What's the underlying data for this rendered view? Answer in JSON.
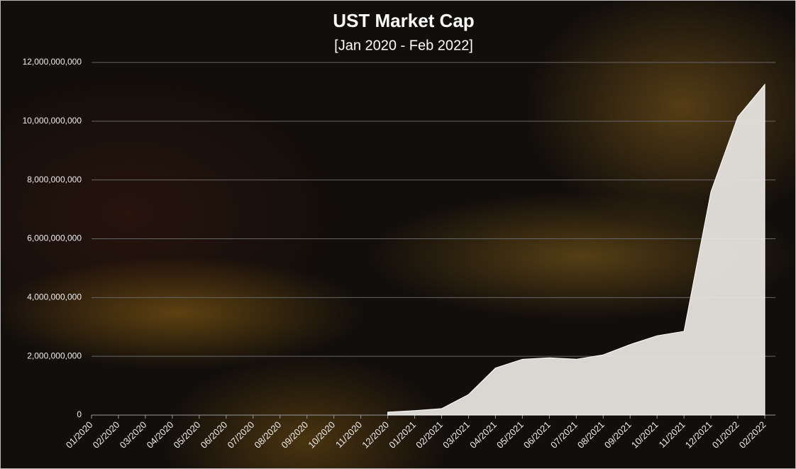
{
  "chart_data": {
    "type": "area",
    "title": "UST Market Cap",
    "subtitle": "[Jan 2020 - Feb 2022]",
    "categories": [
      "01/2020",
      "02/2020",
      "03/2020",
      "04/2020",
      "05/2020",
      "06/2020",
      "07/2020",
      "08/2020",
      "09/2020",
      "10/2020",
      "11/2020",
      "12/2020",
      "01/2021",
      "02/2021",
      "03/2021",
      "04/2021",
      "05/2021",
      "06/2021",
      "07/2021",
      "08/2021",
      "09/2021",
      "10/2021",
      "11/2021",
      "12/2021",
      "01/2022",
      "02/2022"
    ],
    "values": [
      null,
      null,
      null,
      null,
      null,
      null,
      null,
      null,
      null,
      null,
      null,
      100000000,
      150000000,
      220000000,
      700000000,
      1600000000,
      1900000000,
      1950000000,
      1900000000,
      2050000000,
      2400000000,
      2700000000,
      2850000000,
      7600000000,
      10150000000,
      11250000000
    ],
    "color": "#ece8e4",
    "ylim": [
      0,
      12000000000
    ],
    "yticks": [
      0,
      {
        "value": 2000000000,
        "label": "2,000,000,000"
      },
      {
        "value": 4000000000,
        "label": "4,000,000,000"
      },
      {
        "value": 6000000000,
        "label": "6,000,000,000"
      },
      {
        "value": 8000000000,
        "label": "8,000,000,000"
      },
      {
        "value": 10000000000,
        "label": "10,000,000,000"
      },
      {
        "value": 12000000000,
        "label": "12,000,000,000"
      }
    ],
    "grid": true
  }
}
